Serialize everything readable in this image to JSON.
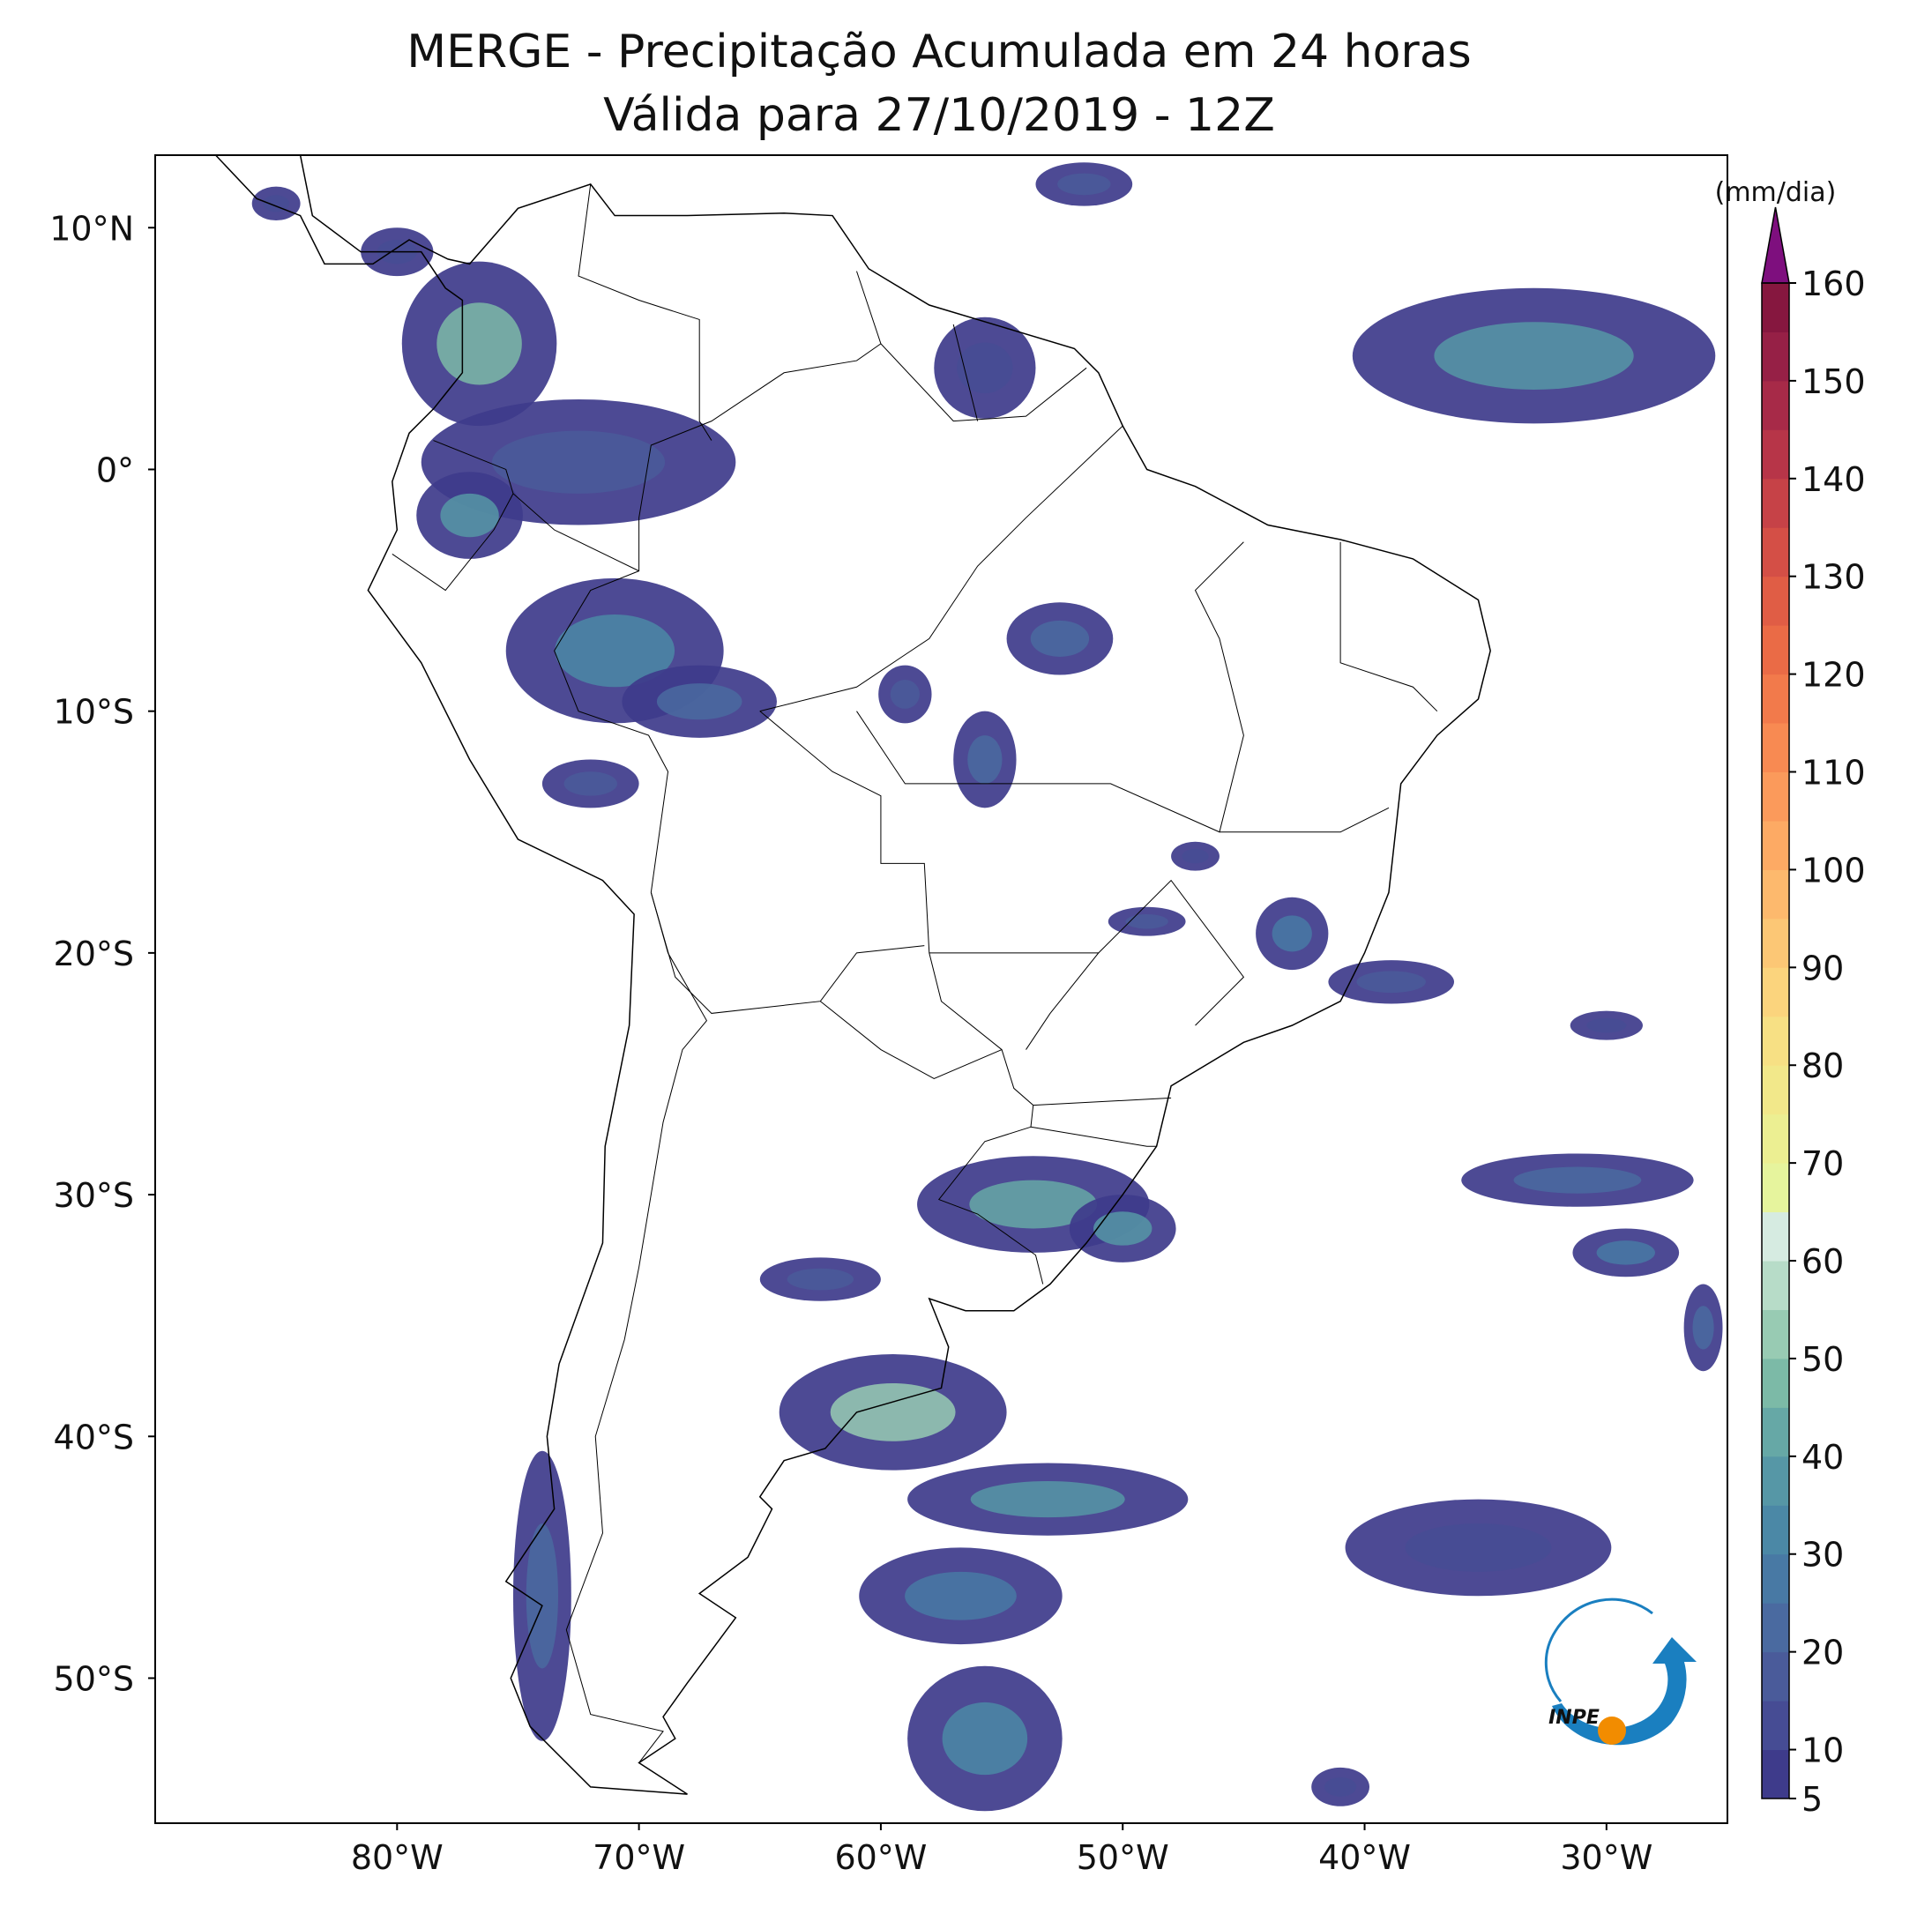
{
  "title": {
    "line1": "MERGE - Precipitação Acumulada em 24 horas",
    "line2": "Válida para 27/10/2019 - 12Z"
  },
  "map": {
    "xlim": [
      -90,
      -25
    ],
    "ylim": [
      -56,
      13
    ],
    "xticks": [
      {
        "value": -80,
        "label": "80°W"
      },
      {
        "value": -70,
        "label": "70°W"
      },
      {
        "value": -60,
        "label": "60°W"
      },
      {
        "value": -50,
        "label": "50°W"
      },
      {
        "value": -40,
        "label": "40°W"
      },
      {
        "value": -30,
        "label": "30°W"
      }
    ],
    "yticks": [
      {
        "value": 10,
        "label": "10°N"
      },
      {
        "value": 0,
        "label": "0°"
      },
      {
        "value": -10,
        "label": "10°S"
      },
      {
        "value": -20,
        "label": "20°S"
      },
      {
        "value": -30,
        "label": "30°S"
      },
      {
        "value": -40,
        "label": "40°S"
      },
      {
        "value": -50,
        "label": "50°S"
      }
    ]
  },
  "colorbar": {
    "label": "(mm/dia)",
    "lim": [
      5,
      160
    ],
    "bounds": [
      5,
      10,
      15,
      20,
      25,
      30,
      35,
      40,
      45,
      50,
      55,
      60,
      65,
      70,
      75,
      80,
      85,
      90,
      95,
      100,
      105,
      110,
      115,
      120,
      125,
      130,
      135,
      140,
      145,
      150,
      155,
      160
    ],
    "colors": [
      "#3e3b8b",
      "#464c94",
      "#4a5b9a",
      "#4a6aa0",
      "#4879a4",
      "#4b88a6",
      "#5697a6",
      "#66a8a6",
      "#7cbaa7",
      "#98cbb3",
      "#b7dcc8",
      "#d6ebe1",
      "#e6f49d",
      "#ecef92",
      "#f2e88a",
      "#f7e084",
      "#fbd47d",
      "#fcc775",
      "#fdb96d",
      "#fdaa64",
      "#fb9a5b",
      "#f88a52",
      "#f27a4b",
      "#ea6b46",
      "#e05d45",
      "#d44f46",
      "#c64247",
      "#b73548",
      "#a72a48",
      "#962046",
      "#86173f"
    ],
    "extend_color": "#7e0f7e",
    "ticks": [
      5,
      10,
      20,
      30,
      40,
      50,
      60,
      70,
      80,
      90,
      100,
      110,
      120,
      130,
      140,
      150,
      160
    ]
  },
  "logo": {
    "text": "INPE"
  }
}
